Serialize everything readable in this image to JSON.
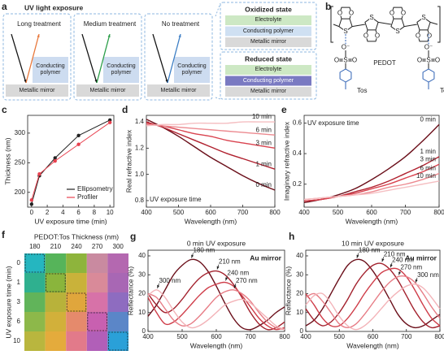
{
  "panel_a": {
    "label": "a",
    "title": "UV light exposure",
    "treatments": [
      {
        "heading": "Long treatment",
        "polymer": "Conducting polymer",
        "mirror": "Metallic mirror"
      },
      {
        "heading": "Medium treatment",
        "polymer": "Conducting polymer",
        "mirror": "Metallic mirror"
      },
      {
        "heading": "No treatment",
        "polymer": "Conducting polymer",
        "mirror": "Metallic mirror"
      }
    ],
    "states": [
      {
        "title": "Oxidized state",
        "layers": [
          "Electrolyte",
          "Conducting polymer",
          "Metallic mirror"
        ]
      },
      {
        "title": "Reduced state",
        "layers": [
          "Electrolyte",
          "Conducting polymer",
          "Metallic mirror"
        ]
      }
    ]
  },
  "panel_b": {
    "label": "b",
    "name": "PEDOT",
    "counter_ion": [
      "Tos",
      "Tos"
    ],
    "atoms": {
      "sulfur": "S",
      "oxygen": "O",
      "anion": "O⁻"
    }
  },
  "chart_data": [
    {
      "type": "line",
      "label": "c",
      "xlabel": "UV exposure time (min)",
      "ylabel": "Thickness (nm)",
      "x": [
        0,
        1,
        3,
        6,
        10
      ],
      "xlim": [
        -0.5,
        10.5
      ],
      "xticks": [
        0,
        2,
        4,
        6,
        8,
        10
      ],
      "ylim": [
        175,
        330
      ],
      "yticks": [
        200,
        250,
        300
      ],
      "legend": "lower right",
      "series": [
        {
          "name": "Ellipsometry",
          "color": "#222222",
          "values": [
            180,
            228,
            258,
            296,
            322
          ]
        },
        {
          "name": "Profiler",
          "color": "#e8414f",
          "values": [
            187,
            231,
            253,
            281,
            318
          ]
        }
      ]
    },
    {
      "type": "line",
      "label": "d",
      "xlabel": "Wavelength (nm)",
      "ylabel": "Real refractive index",
      "annotation": "UV exposure time",
      "x": [
        400,
        450,
        500,
        550,
        600,
        650,
        700,
        750,
        800
      ],
      "xlim": [
        400,
        800
      ],
      "xticks": [
        400,
        500,
        600,
        700,
        800
      ],
      "ylim": [
        0.75,
        1.45
      ],
      "yticks": [
        0.8,
        {
          "value": 1,
          "label": "1.0"
        },
        1.2,
        1.4
      ],
      "series": [
        {
          "name": "0 min",
          "color": "#6b0f1a",
          "values": [
            1.42,
            1.36,
            1.29,
            1.21,
            1.13,
            1.06,
            0.99,
            0.93,
            0.88
          ]
        },
        {
          "name": "1 min",
          "color": "#b0202e",
          "values": [
            1.4,
            1.36,
            1.31,
            1.26,
            1.21,
            1.16,
            1.12,
            1.08,
            1.04
          ]
        },
        {
          "name": "3 min",
          "color": "#d9434f",
          "values": [
            1.39,
            1.37,
            1.34,
            1.31,
            1.29,
            1.26,
            1.24,
            1.22,
            1.2
          ]
        },
        {
          "name": "6 min",
          "color": "#ec8a90",
          "values": [
            1.38,
            1.37,
            1.36,
            1.35,
            1.34,
            1.33,
            1.32,
            1.31,
            1.3
          ]
        },
        {
          "name": "10 min",
          "color": "#f5bfc2",
          "values": [
            1.37,
            1.38,
            1.38,
            1.39,
            1.39,
            1.39,
            1.4,
            1.4,
            1.4
          ]
        }
      ]
    },
    {
      "type": "line",
      "label": "e",
      "xlabel": "Wavelength (nm)",
      "ylabel": "Imaginary refractive index",
      "annotation": "UV exposure time",
      "x": [
        400,
        450,
        500,
        550,
        600,
        650,
        700,
        750,
        800
      ],
      "xlim": [
        400,
        800
      ],
      "xticks": [
        400,
        500,
        600,
        700,
        800
      ],
      "ylim": [
        0.05,
        0.65
      ],
      "yticks": [
        0.2,
        0.4,
        0.6
      ],
      "series": [
        {
          "name": "0 min",
          "color": "#6b0f1a",
          "values": [
            0.08,
            0.1,
            0.13,
            0.17,
            0.23,
            0.3,
            0.38,
            0.48,
            0.59
          ]
        },
        {
          "name": "1 min",
          "color": "#b0202e",
          "values": [
            0.09,
            0.1,
            0.12,
            0.15,
            0.18,
            0.22,
            0.27,
            0.32,
            0.38
          ]
        },
        {
          "name": "3 min",
          "color": "#d9434f",
          "values": [
            0.09,
            0.1,
            0.12,
            0.14,
            0.17,
            0.2,
            0.24,
            0.28,
            0.33
          ]
        },
        {
          "name": "6 min",
          "color": "#ec8a90",
          "values": [
            0.1,
            0.11,
            0.12,
            0.13,
            0.15,
            0.18,
            0.2,
            0.23,
            0.27
          ]
        },
        {
          "name": "10 min",
          "color": "#f5bfc2",
          "values": [
            0.1,
            0.11,
            0.12,
            0.13,
            0.14,
            0.16,
            0.18,
            0.2,
            0.22
          ]
        }
      ]
    },
    {
      "type": "heatmap",
      "label": "f",
      "title": "PEDOT:Tos Thickness (nm)",
      "ylabel": "UV exposure time (min)",
      "x": [
        180,
        210,
        240,
        270,
        300
      ],
      "y": [
        0,
        1,
        3,
        6,
        10
      ],
      "colors": [
        [
          "#25b6c0",
          "#56b45a",
          "#8eb43c",
          "#c98aa0",
          "#b468b0"
        ],
        [
          "#2fb08f",
          "#8ab53c",
          "#c9b23a",
          "#d98a99",
          "#a867b4"
        ],
        [
          "#61b45a",
          "#b8b23a",
          "#e0a63c",
          "#d772a8",
          "#8e6cc0"
        ],
        [
          "#8db84a",
          "#d2b03a",
          "#e58a6c",
          "#c860b0",
          "#5b86c8"
        ],
        [
          "#b9b63e",
          "#e4ab3c",
          "#e27a8a",
          "#b15fb8",
          "#2aa0d8"
        ]
      ]
    },
    {
      "type": "line",
      "label": "g",
      "title": "0 min UV exposure",
      "annotation": "Au mirror",
      "xlabel": "Wavelength (nm)",
      "ylabel": "Reflectance (%)",
      "x": [
        400,
        425,
        450,
        475,
        500,
        525,
        550,
        575,
        600,
        625,
        650,
        675,
        700,
        725,
        750,
        775,
        800
      ],
      "xlim": [
        400,
        800
      ],
      "xticks": [
        400,
        500,
        600,
        700,
        800
      ],
      "ylim": [
        0,
        43
      ],
      "yticks": [
        0,
        10,
        20,
        30,
        40
      ],
      "series": [
        {
          "name": "180 nm",
          "color": "#6b0f1a",
          "values": [
            8,
            14,
            22,
            30,
            35,
            38,
            37,
            32,
            24,
            15,
            7,
            2,
            1,
            3,
            6,
            10,
            13
          ]
        },
        {
          "name": "210 nm",
          "color": "#a3212d",
          "values": [
            20,
            14,
            10,
            12,
            17,
            23,
            28,
            31,
            32,
            30,
            25,
            18,
            10,
            4,
            1,
            2,
            5
          ]
        },
        {
          "name": "240 nm",
          "color": "#cf3d49",
          "values": [
            18,
            10,
            4,
            5,
            9,
            14,
            19,
            23,
            25,
            26,
            24,
            19,
            13,
            7,
            3,
            1,
            2
          ]
        },
        {
          "name": "270 nm",
          "color": "#e77d86",
          "values": [
            20,
            18,
            12,
            6,
            3,
            4,
            8,
            13,
            18,
            21,
            22,
            20,
            16,
            10,
            5,
            2,
            1
          ]
        },
        {
          "name": "300 nm",
          "color": "#f3b3b8",
          "values": [
            19,
            22,
            18,
            11,
            5,
            2,
            3,
            6,
            10,
            14,
            16,
            17,
            15,
            11,
            7,
            3,
            1
          ]
        }
      ]
    },
    {
      "type": "line",
      "label": "h",
      "title": "10 min UV exposure",
      "annotation": "Au mirror",
      "xlabel": "Wavelength (nm)",
      "ylabel": "Reflectance (%)",
      "x": [
        400,
        425,
        450,
        475,
        500,
        525,
        550,
        575,
        600,
        625,
        650,
        675,
        700,
        725,
        750,
        775,
        800
      ],
      "xlim": [
        400,
        800
      ],
      "xticks": [
        400,
        500,
        600,
        700,
        800
      ],
      "ylim": [
        0,
        43
      ],
      "yticks": [
        0,
        10,
        20,
        30,
        40
      ],
      "series": [
        {
          "name": "180 nm",
          "color": "#6b0f1a",
          "values": [
            3,
            6,
            12,
            20,
            28,
            35,
            38,
            37,
            32,
            25,
            17,
            9,
            4,
            2,
            3,
            6,
            9
          ]
        },
        {
          "name": "210 nm",
          "color": "#a3212d",
          "values": [
            12,
            6,
            3,
            5,
            10,
            17,
            25,
            31,
            35,
            36,
            33,
            27,
            19,
            11,
            5,
            2,
            3
          ]
        },
        {
          "name": "240 nm",
          "color": "#cf3d49",
          "values": [
            20,
            14,
            7,
            3,
            3,
            7,
            13,
            20,
            26,
            31,
            33,
            33,
            29,
            22,
            14,
            7,
            3
          ]
        },
        {
          "name": "270 nm",
          "color": "#e77d86",
          "values": [
            18,
            20,
            16,
            10,
            4,
            2,
            4,
            9,
            15,
            21,
            26,
            29,
            29,
            26,
            20,
            13,
            7
          ]
        },
        {
          "name": "300 nm",
          "color": "#f3b3b8",
          "values": [
            14,
            19,
            20,
            15,
            8,
            3,
            1,
            3,
            7,
            12,
            17,
            21,
            24,
            25,
            23,
            18,
            12
          ]
        }
      ]
    }
  ]
}
